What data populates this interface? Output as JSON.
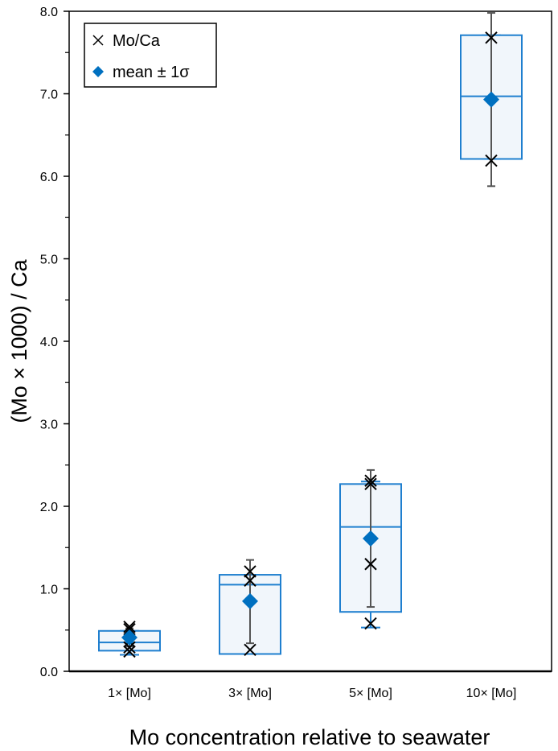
{
  "chart_data": {
    "type": "box",
    "xlabel": "Mo concentration relative to seawater",
    "ylabel": "(Mo × 1000) / Ca",
    "ylim": [
      0,
      8
    ],
    "yticks": [
      "0.0",
      "1.0",
      "2.0",
      "3.0",
      "4.0",
      "5.0",
      "6.0",
      "7.0",
      "8.0"
    ],
    "ytick_values": [
      0,
      1,
      2,
      3,
      4,
      5,
      6,
      7,
      8
    ],
    "categories": [
      "1× [Mo]",
      "3× [Mo]",
      "5× [Mo]",
      "10× [Mo]"
    ],
    "boxes": [
      {
        "q1": 0.25,
        "median": 0.35,
        "q3": 0.49,
        "whisker_low": 0.2,
        "whisker_high": 0.49,
        "mean": 0.41,
        "sd_low": 0.3,
        "sd_high": 0.52,
        "points": [
          0.54,
          0.51,
          0.36,
          0.29,
          0.24
        ]
      },
      {
        "q1": 0.21,
        "median": 1.05,
        "q3": 1.17,
        "whisker_low": 0.21,
        "whisker_high": 1.17,
        "mean": 0.85,
        "sd_low": 0.34,
        "sd_high": 1.35,
        "points": [
          1.21,
          1.1,
          0.26
        ]
      },
      {
        "q1": 0.72,
        "median": 1.75,
        "q3": 2.27,
        "whisker_low": 0.53,
        "whisker_high": 2.3,
        "mean": 1.61,
        "sd_low": 0.78,
        "sd_high": 2.44,
        "points": [
          2.31,
          2.27,
          1.3,
          0.58
        ]
      },
      {
        "q1": 6.21,
        "median": 6.97,
        "q3": 7.71,
        "whisker_low": 6.21,
        "whisker_high": 7.71,
        "mean": 6.93,
        "sd_low": 5.88,
        "sd_high": 7.98,
        "points": [
          7.68,
          6.19
        ]
      }
    ],
    "legend": {
      "placement": "top-left",
      "entries": [
        "Mo/Ca",
        "mean ± 1σ"
      ]
    },
    "colors": {
      "box": "#1f7fcf",
      "box_fill": "#f1f6fb",
      "mean": "#0070c0",
      "points": "#000000",
      "errorbar": "#555555"
    }
  }
}
